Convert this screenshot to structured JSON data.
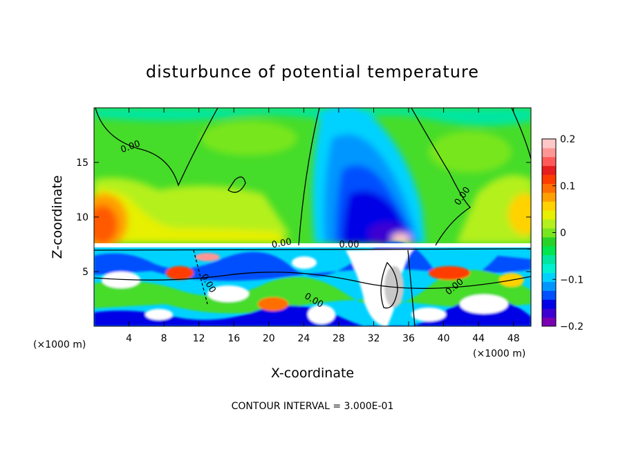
{
  "chart_data": {
    "type": "heatmap",
    "title": "disturbunce of potential temperature",
    "xlabel": "X-coordinate",
    "ylabel": "Z-coordinate",
    "x_unit": "(×1000 m)",
    "x_unit_right": "(×1000 m)",
    "xlim": [
      0,
      50
    ],
    "ylim": [
      0,
      20
    ],
    "x_ticks": [
      "4",
      "8",
      "12",
      "16",
      "20",
      "24",
      "28",
      "32",
      "36",
      "40",
      "44",
      "48"
    ],
    "y_ticks": [
      "5",
      "10",
      "15"
    ],
    "colorbar": {
      "range": [
        -0.2,
        0.2
      ],
      "tick_labels": [
        "0.2",
        "0.1",
        "0",
        "−0.1",
        "−0.2"
      ],
      "colors": [
        "#7a00b4",
        "#3c00d2",
        "#0000e6",
        "#0050ff",
        "#0096ff",
        "#00d2ff",
        "#00f0d2",
        "#00e6a0",
        "#00e650",
        "#28d228",
        "#78e61e",
        "#b4f01e",
        "#e6f000",
        "#ffd200",
        "#ffa000",
        "#ff6e00",
        "#ff3c00",
        "#e61e1e",
        "#ff5a5a",
        "#ff9696",
        "#ffc8c8"
      ]
    },
    "contour_labels": [
      "0.00",
      "0.00",
      "0.00",
      "0.00",
      "0.00",
      "0.00",
      "0.00"
    ],
    "footer": "CONTOUR INTERVAL = 3.000E-01"
  }
}
